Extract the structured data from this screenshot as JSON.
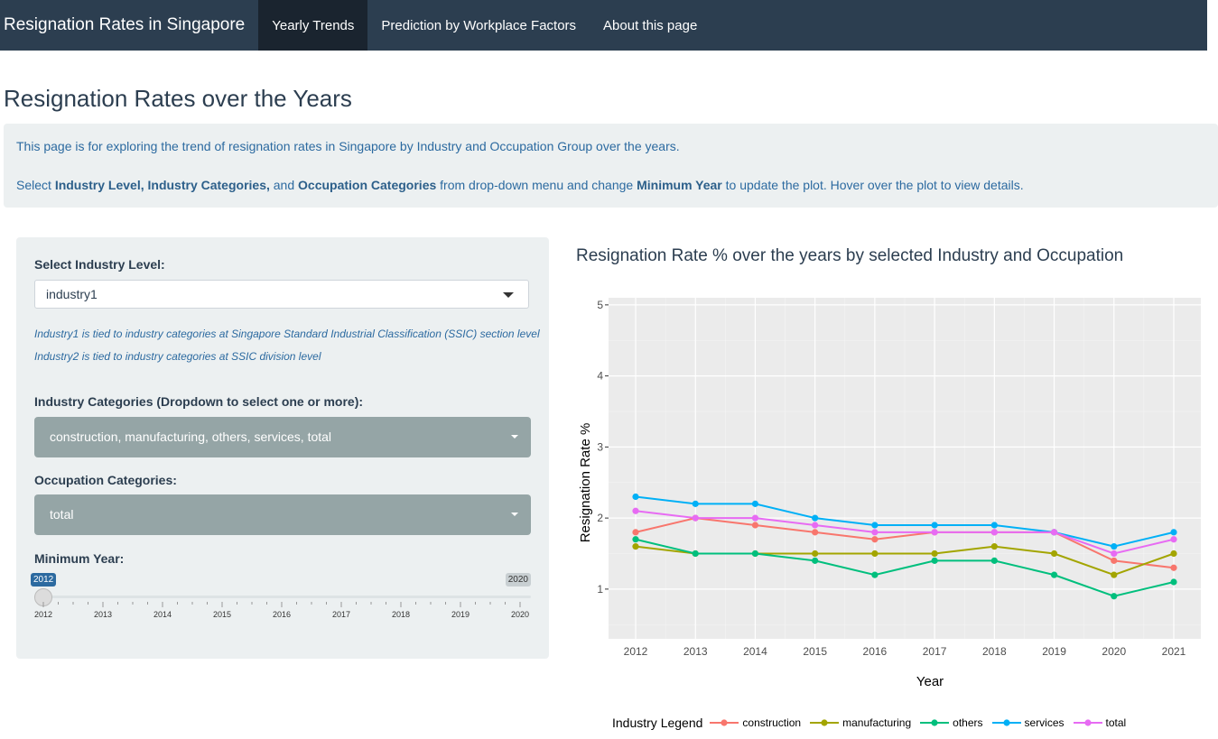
{
  "navbar": {
    "brand": "Resignation Rates in Singapore",
    "tabs": [
      {
        "label": "Yearly Trends",
        "active": true
      },
      {
        "label": "Prediction by Workplace Factors",
        "active": false
      },
      {
        "label": "About this page",
        "active": false
      }
    ]
  },
  "page": {
    "title": "Resignation Rates over the Years",
    "intro": "This page is for exploring the trend of resignation rates in Singapore by Industry and Occupation Group over the years.",
    "instructions": {
      "p1": "Select ",
      "b1": "Industry Level, Industry Categories,",
      "p2": " and ",
      "b2": "Occupation Categories",
      "p3": " from drop-down menu and change ",
      "b3": "Minimum Year",
      "p4": " to update the plot. Hover over the plot to view details."
    }
  },
  "sidebar": {
    "industry_level_label": "Select Industry Level:",
    "industry_level_value": "industry1",
    "help1": "Industry1 is tied to industry categories at Singapore Standard Industrial Classification (SSIC) section level",
    "help2": "Industry2 is tied to industry categories at SSIC division level",
    "industry_categories_label": "Industry Categories (Dropdown to select one or more):",
    "industry_categories_value": "construction, manufacturing, others, services, total",
    "occupation_label": "Occupation Categories:",
    "occupation_value": "total",
    "min_year_label": "Minimum Year:",
    "slider": {
      "value": "2012",
      "max": "2020",
      "ticks": [
        "2012",
        "2013",
        "2014",
        "2015",
        "2016",
        "2017",
        "2018",
        "2019",
        "2020"
      ]
    }
  },
  "chart_title": "Resignation Rate % over the years by selected Industry and Occupation",
  "chart_data": {
    "type": "line",
    "xlabel": "Year",
    "ylabel": "Resignation Rate %",
    "x": [
      2012,
      2013,
      2014,
      2015,
      2016,
      2017,
      2018,
      2019,
      2020,
      2021
    ],
    "ylim": [
      0.3,
      5.1
    ],
    "yticks": [
      1,
      2,
      3,
      4,
      5
    ],
    "legend_title": "Industry Legend",
    "legend_position": "bottom",
    "grid": true,
    "series": [
      {
        "name": "construction",
        "color": "#f8766d",
        "values": [
          1.8,
          2.0,
          1.9,
          1.8,
          1.7,
          1.8,
          1.8,
          1.8,
          1.4,
          1.3
        ]
      },
      {
        "name": "manufacturing",
        "color": "#a3a500",
        "values": [
          1.6,
          1.5,
          1.5,
          1.5,
          1.5,
          1.5,
          1.6,
          1.5,
          1.2,
          1.5
        ]
      },
      {
        "name": "others",
        "color": "#00bf7d",
        "values": [
          1.7,
          1.5,
          1.5,
          1.4,
          1.2,
          1.4,
          1.4,
          1.2,
          0.9,
          1.1
        ]
      },
      {
        "name": "services",
        "color": "#00b0f6",
        "values": [
          2.3,
          2.2,
          2.2,
          2.0,
          1.9,
          1.9,
          1.9,
          1.8,
          1.6,
          1.8
        ]
      },
      {
        "name": "total",
        "color": "#e76bf3",
        "values": [
          2.1,
          2.0,
          2.0,
          1.9,
          1.8,
          1.8,
          1.8,
          1.8,
          1.5,
          1.7
        ]
      }
    ]
  }
}
